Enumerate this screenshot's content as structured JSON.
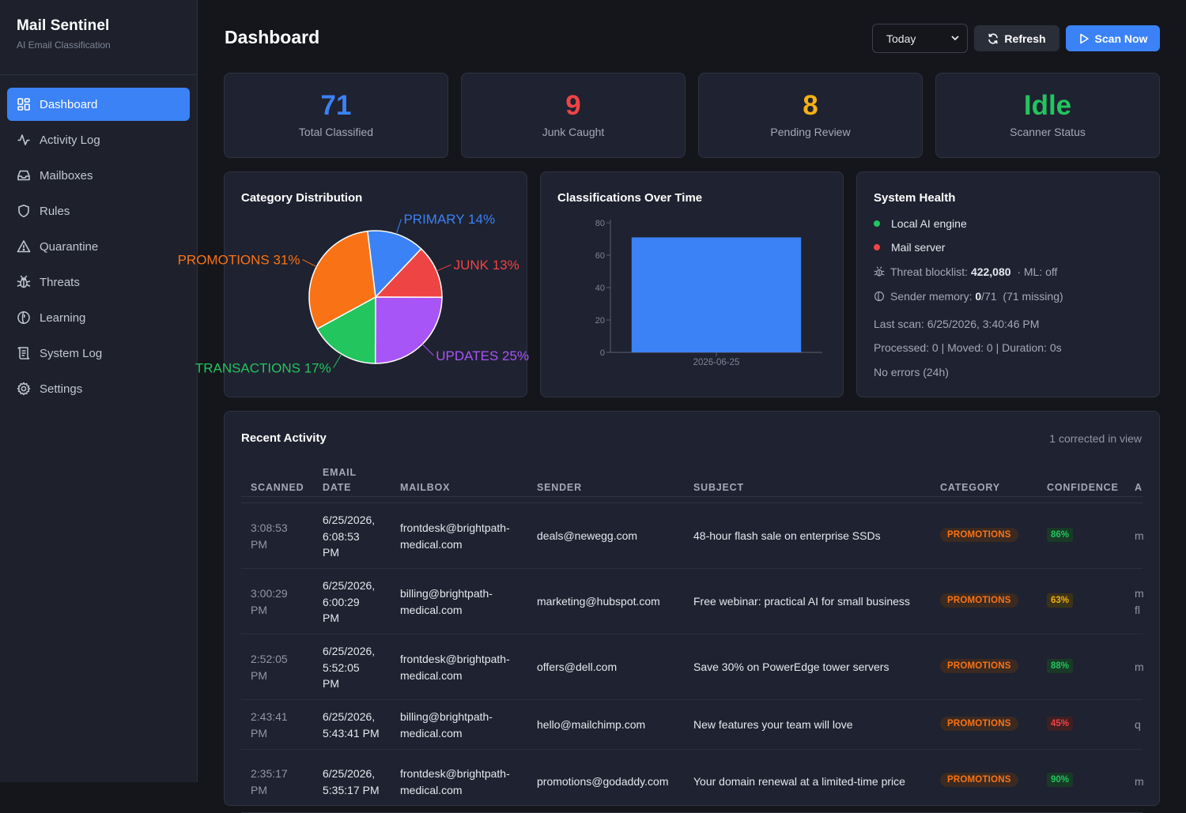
{
  "app": {
    "title": "Mail Sentinel",
    "subtitle": "AI Email Classification"
  },
  "sidebar": {
    "items": [
      {
        "label": "Dashboard",
        "icon": "dashboard-grid-icon",
        "active": true
      },
      {
        "label": "Activity Log",
        "icon": "activity-icon"
      },
      {
        "label": "Mailboxes",
        "icon": "inbox-icon"
      },
      {
        "label": "Rules",
        "icon": "shield-icon"
      },
      {
        "label": "Quarantine",
        "icon": "warning-triangle-icon"
      },
      {
        "label": "Threats",
        "icon": "bug-icon"
      },
      {
        "label": "Learning",
        "icon": "brain-icon"
      },
      {
        "label": "System Log",
        "icon": "scroll-icon"
      },
      {
        "label": "Settings",
        "icon": "gear-icon"
      }
    ]
  },
  "header": {
    "title": "Dashboard",
    "range_value": "Today",
    "refresh_label": "Refresh",
    "scan_label": "Scan Now"
  },
  "stats": [
    {
      "value": "71",
      "label": "Total Classified",
      "color": "#3b82f6"
    },
    {
      "value": "9",
      "label": "Junk Caught",
      "color": "#ef4444"
    },
    {
      "value": "8",
      "label": "Pending Review",
      "color": "#f5b014"
    },
    {
      "value": "Idle",
      "label": "Scanner Status",
      "color": "#22c55e"
    }
  ],
  "category_panel": {
    "title": "Category Distribution"
  },
  "time_panel": {
    "title": "Classifications Over Time"
  },
  "chart_data": [
    {
      "type": "pie",
      "title": "Category Distribution",
      "slices": [
        {
          "label": "PRIMARY 14%",
          "value": 14,
          "color": "#3b82f6"
        },
        {
          "label": "JUNK 13%",
          "value": 13,
          "color": "#ef4444"
        },
        {
          "label": "UPDATES 25%",
          "value": 25,
          "color": "#a855f7"
        },
        {
          "label": "TRANSACTIONS 17%",
          "value": 17,
          "color": "#22c55e"
        },
        {
          "label": "PROMOTIONS 31%",
          "value": 31,
          "color": "#f97316"
        }
      ]
    },
    {
      "type": "bar",
      "title": "Classifications Over Time",
      "categories": [
        "2026-06-25"
      ],
      "values": [
        71
      ],
      "ylim": [
        0,
        80
      ],
      "yticks": [
        "0",
        "20",
        "40",
        "60",
        "80"
      ],
      "color": "#3b82f6"
    }
  ],
  "health": {
    "title": "System Health",
    "engine_label": "Local AI engine",
    "engine_color": "#22c55e",
    "mail_label": "Mail server",
    "mail_color": "#ef4444",
    "blocklist_label": "Threat blocklist:",
    "blocklist_value": "422,080",
    "ml_status": "· ML: off",
    "memory_label": "Sender memory:",
    "memory_value": "0",
    "memory_rest": "/71  (71 missing)",
    "last_scan": "Last scan: 6/25/2026, 3:40:46 PM",
    "processed": "Processed: 0 | Moved: 0 | Duration: 0s",
    "errors": "No errors (24h)"
  },
  "activity": {
    "title": "Recent Activity",
    "note": "1 corrected in view",
    "columns": [
      "SCANNED",
      "EMAIL\nDATE",
      "MAILBOX",
      "SENDER",
      "SUBJECT",
      "CATEGORY",
      "CONFIDENCE",
      "A"
    ],
    "rows": [
      {
        "scanned": "3:08:53\nPM",
        "date": "6/25/2026,\n6:08:53\nPM",
        "mailbox": "frontdesk@brightpath-\nmedical.com",
        "sender": "deals@newegg.com",
        "subject": "48-hour flash sale on enterprise SSDs",
        "category": "PROMOTIONS",
        "confidence": "86%",
        "conf_color": "#22c55e",
        "conf_bg": "#193a26",
        "extra": "m"
      },
      {
        "scanned": "3:00:29\nPM",
        "date": "6/25/2026,\n6:00:29\nPM",
        "mailbox": "billing@brightpath-\nmedical.com",
        "sender": "marketing@hubspot.com",
        "subject": "Free webinar: practical AI for small business",
        "category": "PROMOTIONS",
        "confidence": "63%",
        "conf_color": "#f5b014",
        "conf_bg": "#3b3318",
        "extra": "m\nfl"
      },
      {
        "scanned": "2:52:05\nPM",
        "date": "6/25/2026,\n5:52:05\nPM",
        "mailbox": "frontdesk@brightpath-\nmedical.com",
        "sender": "offers@dell.com",
        "subject": "Save 30% on PowerEdge tower servers",
        "category": "PROMOTIONS",
        "confidence": "88%",
        "conf_color": "#22c55e",
        "conf_bg": "#193a26",
        "extra": "m"
      },
      {
        "scanned": "2:43:41\nPM",
        "date": "6/25/2026,\n5:43:41 PM",
        "mailbox": "billing@brightpath-\nmedical.com",
        "sender": "hello@mailchimp.com",
        "subject": "New features your team will love",
        "category": "PROMOTIONS",
        "confidence": "45%",
        "conf_color": "#ef4444",
        "conf_bg": "#3e1f22",
        "extra": "q"
      },
      {
        "scanned": "2:35:17\nPM",
        "date": "6/25/2026,\n5:35:17 PM",
        "mailbox": "frontdesk@brightpath-\nmedical.com",
        "sender": "promotions@godaddy.com",
        "subject": "Your domain renewal at a limited-time price",
        "category": "PROMOTIONS",
        "confidence": "90%",
        "conf_color": "#22c55e",
        "conf_bg": "#193a26",
        "extra": "m"
      }
    ]
  }
}
